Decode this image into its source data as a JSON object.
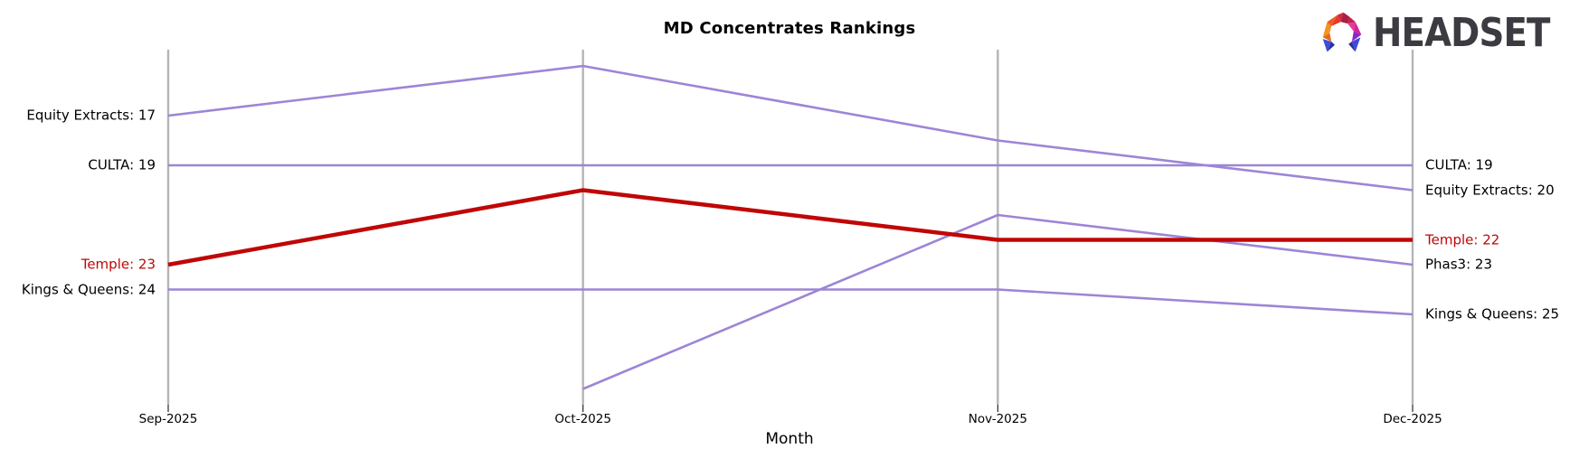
{
  "logo": {
    "text": "HEADSET"
  },
  "colors": {
    "line_default": "#9d85d6",
    "line_highlight": "#c00606",
    "axis": "#b5b5b5",
    "tick": "#262626",
    "text": "#000000",
    "logo_text": "#3b3b41",
    "logo_facets": [
      "#D62839",
      "#A81E44",
      "#C41E4E",
      "#E13A28",
      "#EE5A1F",
      "#F28A1E",
      "#F5941C",
      "#E8681B",
      "#3C50D6",
      "#2B2F9E",
      "#D6219C",
      "#E23B9E",
      "#8A27C9",
      "#4149D8"
    ]
  },
  "chart_data": {
    "type": "line",
    "subtype": "bump-ranking",
    "title": "MD Concentrates Rankings",
    "xlabel": "Month",
    "ylabel": "",
    "x": [
      "Sep-2025",
      "Oct-2025",
      "Nov-2025",
      "Dec-2025"
    ],
    "y_inverted": true,
    "grid": "vertical-gridlines-only",
    "legend": "edge-labels-both-sides",
    "ylim_rank": [
      14,
      29
    ],
    "series": [
      {
        "name": "Equity Extracts",
        "values": [
          17,
          15,
          18,
          20
        ],
        "color": "#9d85d6",
        "highlight": false,
        "left_label": "Equity Extracts: 17",
        "right_label": "Equity Extracts: 20"
      },
      {
        "name": "CULTA",
        "values": [
          19,
          19,
          19,
          19
        ],
        "color": "#9d85d6",
        "highlight": false,
        "left_label": "CULTA: 19",
        "right_label": "CULTA: 19"
      },
      {
        "name": "Temple",
        "values": [
          23,
          20,
          22,
          22
        ],
        "color": "#c00606",
        "highlight": true,
        "left_label": "Temple: 23",
        "right_label": "Temple: 22"
      },
      {
        "name": "Kings & Queens",
        "values": [
          24,
          24,
          24,
          25
        ],
        "color": "#9d85d6",
        "highlight": false,
        "left_label": "Kings & Queens: 24",
        "right_label": "Kings & Queens: 25"
      },
      {
        "name": "Phas3",
        "values": [
          null,
          28,
          21,
          23
        ],
        "color": "#9d85d6",
        "highlight": false,
        "left_label": null,
        "right_label": "Phas3: 23"
      }
    ]
  }
}
